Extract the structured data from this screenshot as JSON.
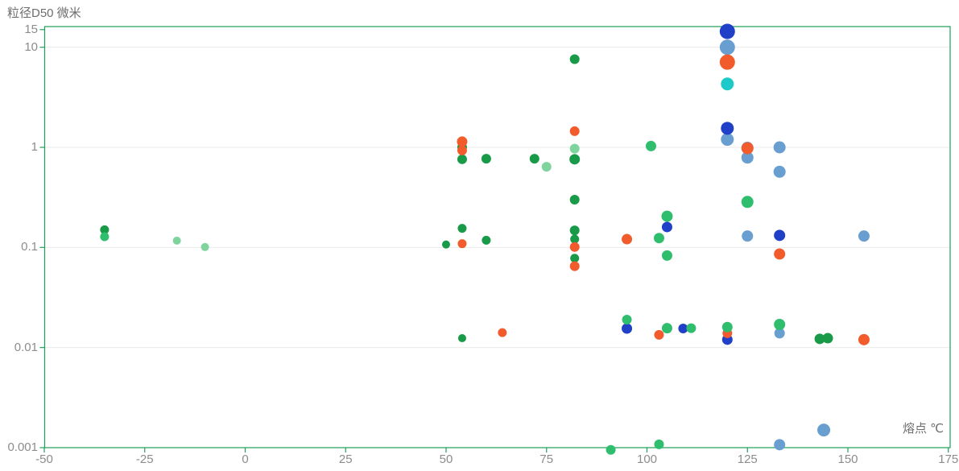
{
  "chart_data": {
    "type": "scatter",
    "title": "",
    "xlabel": "熔点 ℃",
    "ylabel": "粒径D50 微米",
    "x_axis": {
      "min": -50,
      "max": 175.5,
      "scale": "linear",
      "ticks": [
        {
          "v": -50,
          "label": "-50"
        },
        {
          "v": -25,
          "label": "-25"
        },
        {
          "v": 0,
          "label": "0"
        },
        {
          "v": 25,
          "label": "25"
        },
        {
          "v": 50,
          "label": "50"
        },
        {
          "v": 75,
          "label": "75"
        },
        {
          "v": 100,
          "label": "100"
        },
        {
          "v": 125,
          "label": "125"
        },
        {
          "v": 150,
          "label": "150"
        },
        {
          "v": 175,
          "label": "175"
        }
      ]
    },
    "y_axis": {
      "min": 0.001,
      "max": 16.2,
      "scale": "log",
      "ticks": [
        {
          "v": 15,
          "label": "15",
          "grid": false
        },
        {
          "v": 10,
          "label": "10",
          "grid": true
        },
        {
          "v": 1,
          "label": "1",
          "grid": true
        },
        {
          "v": 0.1,
          "label": "0.1",
          "grid": true
        },
        {
          "v": 0.01,
          "label": "0.01",
          "grid": true
        },
        {
          "v": 0.001,
          "label": "0.001",
          "grid": false
        }
      ]
    },
    "grid": "horizontal-only",
    "legend": "none",
    "colors": {
      "axis": "#1f9e58",
      "gridline": "#eaeaea",
      "tick_text": "#8c8c8c",
      "title_text": "#6e6e6e",
      "steel": "#689fd0",
      "cyan": "#1ecac9",
      "blue": "#2040c8",
      "green_dark": "#189a49",
      "orange": "#f25c2c",
      "green": "#2fbe6d",
      "green_light": "#7fd49e"
    },
    "series": [
      {
        "name": "steel-blue",
        "color_key": "steel",
        "points": [
          [
            120,
            10,
            9.5
          ],
          [
            120,
            1.2,
            8
          ],
          [
            125,
            0.99,
            7.5,
            "under"
          ],
          [
            125,
            0.79,
            7.5
          ],
          [
            125,
            0.13,
            7
          ],
          [
            133,
            1.0,
            7.5
          ],
          [
            133,
            0.57,
            7.5
          ],
          [
            133,
            0.0139,
            6.5
          ],
          [
            133,
            0.00107,
            7
          ],
          [
            144,
            0.0015,
            8
          ],
          [
            154,
            0.13,
            7
          ]
        ]
      },
      {
        "name": "cyan",
        "color_key": "cyan",
        "points": [
          [
            120,
            4.3,
            8
          ]
        ]
      },
      {
        "name": "royal-blue",
        "color_key": "blue",
        "points": [
          [
            95,
            0.0155,
            6.5
          ],
          [
            105,
            0.16,
            6.5
          ],
          [
            109,
            0.0155,
            6
          ],
          [
            120,
            14.4,
            9.5
          ],
          [
            120,
            1.55,
            8
          ],
          [
            120,
            0.012,
            6.5
          ],
          [
            133,
            0.132,
            7
          ]
        ]
      },
      {
        "name": "green-dark",
        "color_key": "green_dark",
        "points": [
          [
            -35,
            0.15,
            5.5
          ],
          [
            50,
            0.107,
            5
          ],
          [
            54,
            1.0,
            6
          ],
          [
            54,
            0.76,
            6
          ],
          [
            54,
            0.155,
            5.5
          ],
          [
            54,
            0.0124,
            5
          ],
          [
            60,
            0.77,
            6
          ],
          [
            60,
            0.118,
            5.5
          ],
          [
            72,
            0.77,
            6
          ],
          [
            82,
            7.6,
            6
          ],
          [
            82,
            0.76,
            6.5
          ],
          [
            82,
            0.3,
            6
          ],
          [
            82,
            0.148,
            6
          ],
          [
            82,
            0.121,
            5.5
          ],
          [
            82,
            0.078,
            5.5
          ],
          [
            143,
            0.0122,
            6.5
          ],
          [
            145,
            0.0124,
            6.5
          ]
        ]
      },
      {
        "name": "orange",
        "color_key": "orange",
        "points": [
          [
            54,
            1.14,
            6.5
          ],
          [
            54,
            0.93,
            6
          ],
          [
            54,
            0.109,
            5.5
          ],
          [
            64,
            0.0141,
            5.5
          ],
          [
            82,
            1.45,
            6
          ],
          [
            82,
            0.101,
            6
          ],
          [
            82,
            0.065,
            6
          ],
          [
            95,
            0.121,
            6.5
          ],
          [
            103,
            0.0134,
            6
          ],
          [
            120,
            7.1,
            9.5
          ],
          [
            120,
            0.0139,
            6
          ],
          [
            125,
            0.98,
            7.5
          ],
          [
            133,
            0.086,
            7
          ],
          [
            154,
            0.012,
            7
          ]
        ]
      },
      {
        "name": "green",
        "color_key": "green",
        "points": [
          [
            -35,
            0.128,
            5.5
          ],
          [
            91,
            0.00095,
            6
          ],
          [
            95,
            0.019,
            6
          ],
          [
            101,
            1.03,
            6.5
          ],
          [
            103,
            0.124,
            6.5
          ],
          [
            103,
            0.00108,
            6
          ],
          [
            105,
            0.205,
            7
          ],
          [
            105,
            0.083,
            6.5
          ],
          [
            105,
            0.0156,
            6.5
          ],
          [
            111,
            0.0156,
            6
          ],
          [
            120,
            0.016,
            6.5
          ],
          [
            125,
            0.285,
            7.5
          ],
          [
            133,
            0.017,
            7
          ]
        ]
      },
      {
        "name": "green-light",
        "color_key": "green_light",
        "points": [
          [
            -17,
            0.117,
            5
          ],
          [
            -10,
            0.101,
            5
          ],
          [
            75,
            0.64,
            6
          ],
          [
            82,
            0.97,
            6
          ]
        ]
      }
    ]
  }
}
